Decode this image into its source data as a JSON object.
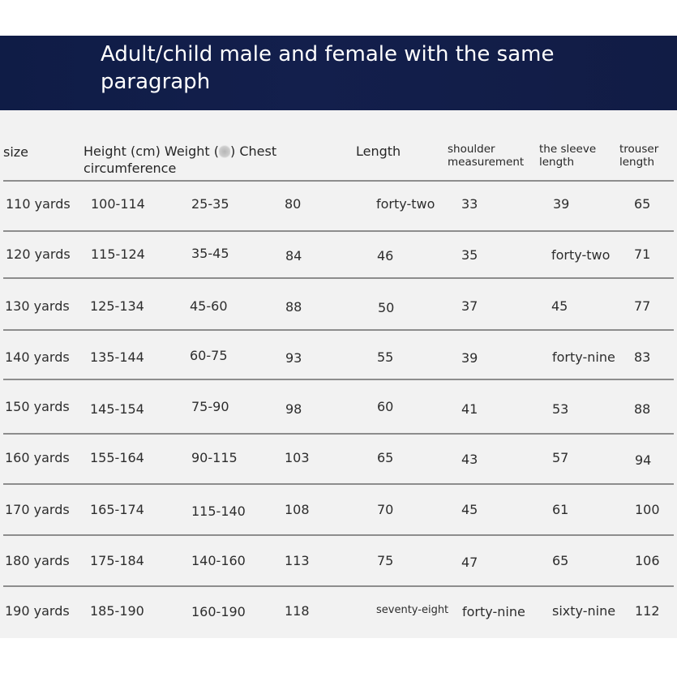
{
  "title": "Adult/child male and female with the same paragraph",
  "headers": {
    "size": "size",
    "height_weight_chest_pre": "Height (cm) Weight (",
    "height_weight_chest_post": ") Chest",
    "circumference": "circumference",
    "length": "Length",
    "shoulder": "shoulder measurement",
    "sleeve": "the sleeve length",
    "trouser": "trouser length"
  },
  "rows": [
    {
      "size": "110 yards",
      "height": "100-114",
      "weight": "25-35",
      "chest": "80",
      "length": "forty-two",
      "shoulder": "33",
      "sleeve": "39",
      "trouser": "65"
    },
    {
      "size": "120 yards",
      "height": "115-124",
      "weight": "35-45",
      "chest": "84",
      "length": "46",
      "shoulder": "35",
      "sleeve": "forty-two",
      "trouser": "71"
    },
    {
      "size": "130 yards",
      "height": "125-134",
      "weight": "45-60",
      "chest": "88",
      "length": "50",
      "shoulder": "37",
      "sleeve": "45",
      "trouser": "77"
    },
    {
      "size": "140 yards",
      "height": "135-144",
      "weight": "60-75",
      "chest": "93",
      "length": "55",
      "shoulder": "39",
      "sleeve": "forty-nine",
      "trouser": "83"
    },
    {
      "size": "150 yards",
      "height": "145-154",
      "weight": "75-90",
      "chest": "98",
      "length": "60",
      "shoulder": "41",
      "sleeve": "53",
      "trouser": "88"
    },
    {
      "size": "160 yards",
      "height": "155-164",
      "weight": "90-115",
      "chest": "103",
      "length": "65",
      "shoulder": "43",
      "sleeve": "57",
      "trouser": "94"
    },
    {
      "size": "170 yards",
      "height": "165-174",
      "weight": "115-140",
      "chest": "108",
      "length": "70",
      "shoulder": "45",
      "sleeve": "61",
      "trouser": "100"
    },
    {
      "size": "180 yards",
      "height": "175-184",
      "weight": "140-160",
      "chest": "113",
      "length": "75",
      "shoulder": "47",
      "sleeve": "65",
      "trouser": "106"
    },
    {
      "size": "190 yards",
      "height": "185-190",
      "weight": "160-190",
      "chest": "118",
      "length": "seventy-eight",
      "shoulder": "forty-nine",
      "sleeve": "sixty-nine",
      "trouser": "112"
    }
  ]
}
